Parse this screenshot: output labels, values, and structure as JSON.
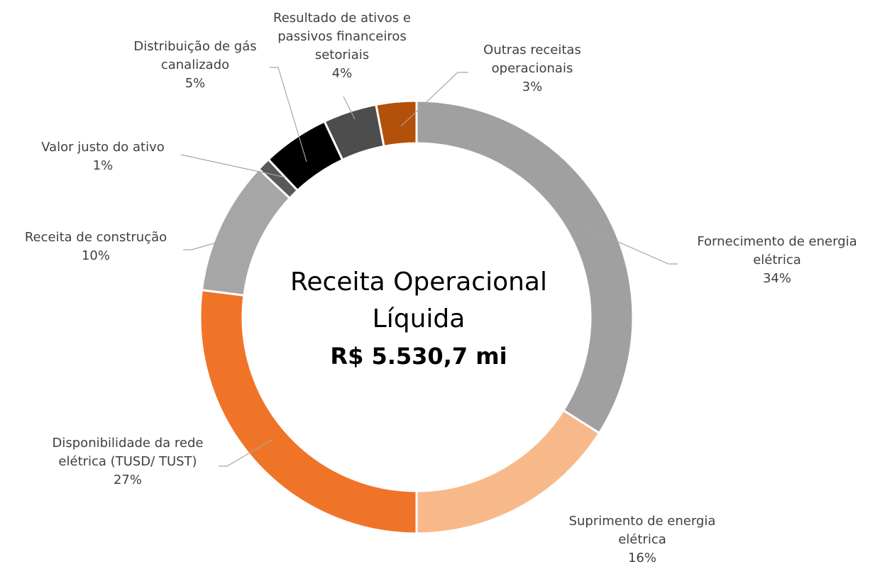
{
  "chart_data": {
    "type": "donut",
    "center_title": "Receita Operacional Líquida",
    "center_value": "R$ 5.530,7 mi",
    "categories": [
      "Fornecimento de energia elétrica",
      "Suprimento de energia elétrica",
      "Disponibilidade da rede elétrica (TUSD/ TUST)",
      "Receita de construção",
      "Valor justo do ativo",
      "Distribuição de gás canalizado",
      "Resultado de ativos e passivos financeiros setoriais",
      "Outras receitas operacionais"
    ],
    "values": [
      34,
      16,
      27,
      10,
      1,
      5,
      4,
      3
    ],
    "value_labels": [
      "34%",
      "16%",
      "27%",
      "10%",
      "1%",
      "5%",
      "4%",
      "3%"
    ],
    "colors": [
      "#a0a0a0",
      "#f8b98a",
      "#f07428",
      "#a6a6a6",
      "#595959",
      "#000000",
      "#4d4d4d",
      "#b3500a"
    ]
  }
}
